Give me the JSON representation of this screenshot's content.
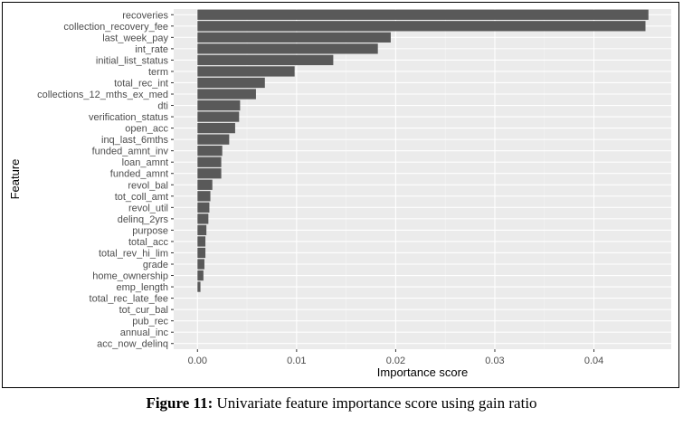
{
  "figure": {
    "caption_label": "Figure 11:",
    "caption_text": " Univariate feature importance score using gain ratio"
  },
  "chart_data": {
    "type": "bar",
    "orientation": "horizontal",
    "xlabel": "Importance score",
    "ylabel": "Feature",
    "xlim": [
      -0.0024,
      0.0478
    ],
    "x_ticks": [
      0.0,
      0.01,
      0.02,
      0.03,
      0.04
    ],
    "x_tick_labels": [
      "0.00",
      "0.01",
      "0.02",
      "0.03",
      "0.04"
    ],
    "grid": true,
    "colors": {
      "bar": "#595959",
      "panel": "#ebebeb",
      "grid_major": "#ffffff"
    },
    "categories": [
      "recoveries",
      "collection_recovery_fee",
      "last_week_pay",
      "int_rate",
      "initial_list_status",
      "term",
      "total_rec_int",
      "collections_12_mths_ex_med",
      "dti",
      "verification_status",
      "open_acc",
      "inq_last_6mths",
      "funded_amnt_inv",
      "loan_amnt",
      "funded_amnt",
      "revol_bal",
      "tot_coll_amt",
      "revol_util",
      "delinq_2yrs",
      "purpose",
      "total_acc",
      "total_rev_hi_lim",
      "grade",
      "home_ownership",
      "emp_length",
      "total_rec_late_fee",
      "tot_cur_bal",
      "pub_rec",
      "annual_inc",
      "acc_now_delinq"
    ],
    "values": [
      0.0455,
      0.0452,
      0.0195,
      0.0182,
      0.0137,
      0.0098,
      0.0068,
      0.0059,
      0.0043,
      0.0042,
      0.0038,
      0.0032,
      0.0025,
      0.0024,
      0.0024,
      0.0015,
      0.0013,
      0.0012,
      0.0011,
      0.0009,
      0.0008,
      0.0008,
      0.0007,
      0.0006,
      0.0003,
      0.0,
      0.0,
      0.0,
      0.0,
      0.0
    ]
  }
}
